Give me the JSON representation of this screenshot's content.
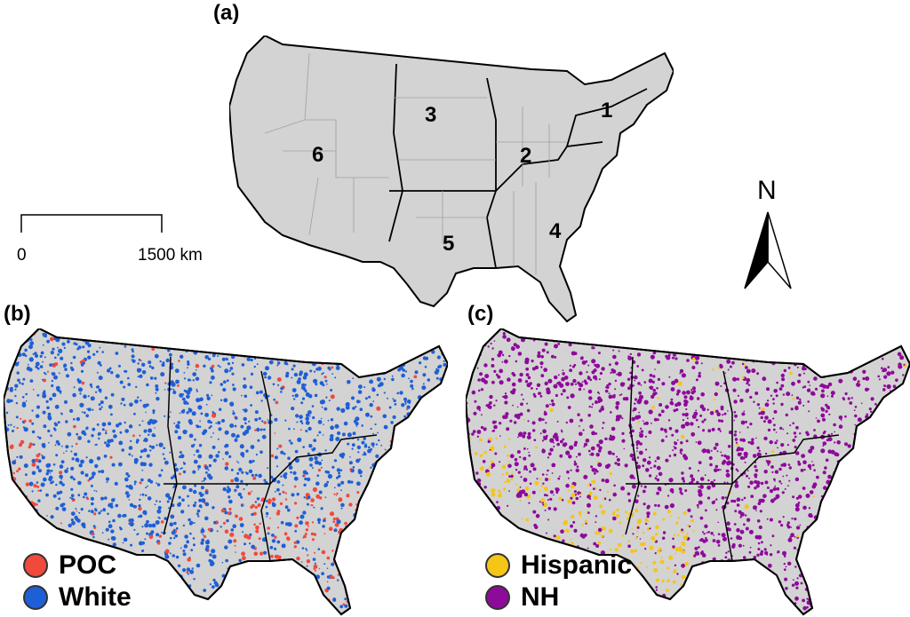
{
  "panels": {
    "a": {
      "label": "(a)"
    },
    "b": {
      "label": "(b)"
    },
    "c": {
      "label": "(c)"
    }
  },
  "regions": [
    "1",
    "2",
    "3",
    "4",
    "5",
    "6"
  ],
  "scale_bar": {
    "start_label": "0",
    "end_label": "1500 km"
  },
  "north_arrow": {
    "label": "N"
  },
  "legend_b": [
    {
      "label": "POC",
      "color": "#f04a3c"
    },
    {
      "label": "White",
      "color": "#1f5fd6"
    }
  ],
  "legend_c": [
    {
      "label": "Hispanic",
      "color": "#f5c518"
    },
    {
      "label": "NH",
      "color": "#8e0a9a"
    }
  ],
  "colors": {
    "land": "#d3d3d3",
    "border": "#000000",
    "state_line": "#a0a0a0"
  }
}
